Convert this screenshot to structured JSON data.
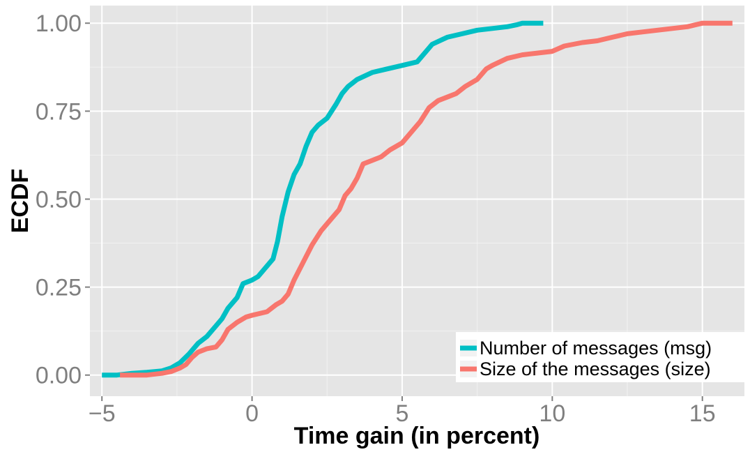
{
  "chart_data": {
    "type": "line",
    "title": "",
    "xlabel": "Time gain (in percent)",
    "ylabel": "ECDF",
    "xlim": [
      -5.4,
      16.4
    ],
    "ylim": [
      -0.06,
      1.05
    ],
    "x_ticks": [
      -5,
      0,
      5,
      10,
      15
    ],
    "x_tick_labels": [
      "−5",
      "0",
      "5",
      "10",
      "15"
    ],
    "y_ticks": [
      0,
      0.25,
      0.5,
      0.75,
      1
    ],
    "y_tick_labels": [
      "0.00",
      "0.25",
      "0.50",
      "0.75",
      "1.00"
    ],
    "grid": true,
    "legend_position": "bottom-right",
    "panel_background": "#e5e5e5",
    "grid_color": "#ffffff",
    "series": [
      {
        "name": "Number of messages (msg)",
        "color": "#00bfc4",
        "points": [
          [
            -5.0,
            0.0
          ],
          [
            -4.5,
            0.0
          ],
          [
            -4.0,
            0.005
          ],
          [
            -3.5,
            0.008
          ],
          [
            -3.0,
            0.012
          ],
          [
            -2.7,
            0.02
          ],
          [
            -2.4,
            0.035
          ],
          [
            -2.1,
            0.06
          ],
          [
            -1.8,
            0.09
          ],
          [
            -1.5,
            0.11
          ],
          [
            -1.2,
            0.14
          ],
          [
            -1.0,
            0.16
          ],
          [
            -0.8,
            0.19
          ],
          [
            -0.5,
            0.22
          ],
          [
            -0.3,
            0.26
          ],
          [
            0.0,
            0.27
          ],
          [
            0.2,
            0.28
          ],
          [
            0.5,
            0.31
          ],
          [
            0.7,
            0.33
          ],
          [
            0.85,
            0.38
          ],
          [
            1.0,
            0.45
          ],
          [
            1.2,
            0.52
          ],
          [
            1.4,
            0.57
          ],
          [
            1.6,
            0.6
          ],
          [
            1.8,
            0.65
          ],
          [
            2.0,
            0.69
          ],
          [
            2.2,
            0.71
          ],
          [
            2.5,
            0.73
          ],
          [
            2.8,
            0.77
          ],
          [
            3.0,
            0.8
          ],
          [
            3.2,
            0.82
          ],
          [
            3.5,
            0.84
          ],
          [
            4.0,
            0.86
          ],
          [
            4.5,
            0.87
          ],
          [
            5.0,
            0.88
          ],
          [
            5.5,
            0.89
          ],
          [
            5.8,
            0.92
          ],
          [
            6.0,
            0.94
          ],
          [
            6.5,
            0.96
          ],
          [
            7.0,
            0.97
          ],
          [
            7.5,
            0.98
          ],
          [
            8.0,
            0.985
          ],
          [
            8.5,
            0.99
          ],
          [
            8.8,
            0.995
          ],
          [
            9.0,
            1.0
          ],
          [
            9.7,
            1.0
          ]
        ]
      },
      {
        "name": "Size of the messages (size)",
        "color": "#f8766d",
        "points": [
          [
            -4.4,
            0.0
          ],
          [
            -3.5,
            0.0
          ],
          [
            -3.0,
            0.005
          ],
          [
            -2.7,
            0.01
          ],
          [
            -2.4,
            0.02
          ],
          [
            -2.2,
            0.03
          ],
          [
            -2.0,
            0.05
          ],
          [
            -1.8,
            0.065
          ],
          [
            -1.5,
            0.075
          ],
          [
            -1.2,
            0.08
          ],
          [
            -1.0,
            0.1
          ],
          [
            -0.8,
            0.13
          ],
          [
            -0.5,
            0.15
          ],
          [
            -0.2,
            0.165
          ],
          [
            0.0,
            0.17
          ],
          [
            0.5,
            0.18
          ],
          [
            0.8,
            0.2
          ],
          [
            1.0,
            0.21
          ],
          [
            1.2,
            0.23
          ],
          [
            1.4,
            0.27
          ],
          [
            1.7,
            0.32
          ],
          [
            2.0,
            0.37
          ],
          [
            2.3,
            0.41
          ],
          [
            2.6,
            0.44
          ],
          [
            2.9,
            0.47
          ],
          [
            3.1,
            0.51
          ],
          [
            3.3,
            0.53
          ],
          [
            3.5,
            0.56
          ],
          [
            3.7,
            0.6
          ],
          [
            4.0,
            0.61
          ],
          [
            4.3,
            0.62
          ],
          [
            4.6,
            0.64
          ],
          [
            5.0,
            0.66
          ],
          [
            5.3,
            0.69
          ],
          [
            5.6,
            0.72
          ],
          [
            5.9,
            0.76
          ],
          [
            6.2,
            0.78
          ],
          [
            6.5,
            0.79
          ],
          [
            6.8,
            0.8
          ],
          [
            7.1,
            0.82
          ],
          [
            7.5,
            0.84
          ],
          [
            7.8,
            0.87
          ],
          [
            8.0,
            0.88
          ],
          [
            8.5,
            0.9
          ],
          [
            9.0,
            0.91
          ],
          [
            9.5,
            0.915
          ],
          [
            10.0,
            0.92
          ],
          [
            10.4,
            0.935
          ],
          [
            11.0,
            0.945
          ],
          [
            11.5,
            0.95
          ],
          [
            12.0,
            0.96
          ],
          [
            12.5,
            0.97
          ],
          [
            13.0,
            0.975
          ],
          [
            13.5,
            0.98
          ],
          [
            14.0,
            0.985
          ],
          [
            14.5,
            0.99
          ],
          [
            15.0,
            1.0
          ],
          [
            16.0,
            1.0
          ]
        ]
      }
    ]
  }
}
